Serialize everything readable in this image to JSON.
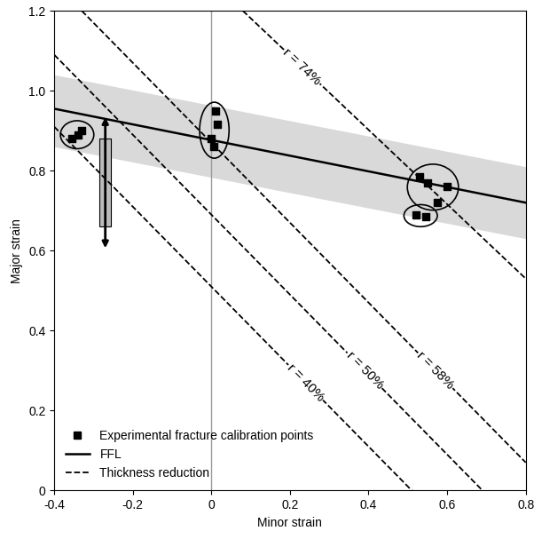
{
  "chart_data": {
    "type": "scatter",
    "x_label": "Minor strain",
    "y_label": "Major strain",
    "xlim": [
      -0.4,
      0.8
    ],
    "ylim": [
      0,
      1.2
    ],
    "xticks": [
      -0.4,
      -0.2,
      0,
      0.2,
      0.4,
      0.6,
      0.8
    ],
    "yticks": [
      0,
      0.2,
      0.4,
      0.6,
      0.8,
      1.0,
      1.2
    ],
    "legend": "lower left",
    "reference_line_x": 0,
    "band": {
      "x": [
        -0.4,
        0.8
      ],
      "lower": [
        0.86,
        0.63
      ],
      "upper": [
        1.04,
        0.81
      ],
      "color": "#d9d9d9"
    },
    "series": [
      {
        "name": "Experimental fracture calibration points",
        "type": "scatter",
        "marker": "square",
        "color": "#000000",
        "groups": [
          {
            "x": [
              -0.355,
              -0.34,
              -0.33
            ],
            "y": [
              0.88,
              0.89,
              0.9
            ]
          },
          {
            "x": [
              0.01,
              0.015,
              0.0,
              0.005
            ],
            "y": [
              0.95,
              0.915,
              0.88,
              0.86
            ]
          },
          {
            "x": [
              0.53,
              0.55,
              0.6,
              0.575
            ],
            "y": [
              0.785,
              0.77,
              0.76,
              0.72
            ]
          },
          {
            "x": [
              0.52,
              0.545
            ],
            "y": [
              0.69,
              0.685
            ]
          }
        ]
      },
      {
        "name": "FFL",
        "type": "line",
        "line_style": "solid",
        "color": "#000000",
        "x": [
          -0.4,
          0.8
        ],
        "y": [
          0.955,
          0.72
        ]
      },
      {
        "name": "Thickness reduction",
        "type": "line",
        "line_style": "dashed",
        "color": "#000000",
        "lines": [
          {
            "label": "r = 40%",
            "x": [
              -0.4,
              0.51
            ],
            "y": [
              0.91,
              0
            ]
          },
          {
            "label": "r = 50%",
            "x": [
              -0.4,
              0.69
            ],
            "y": [
              1.09,
              0
            ]
          },
          {
            "label": "r = 58%",
            "x": [
              -0.33,
              0.8
            ],
            "y": [
              1.2,
              0.07
            ]
          },
          {
            "label": "r = 74%",
            "x": [
              0.08,
              0.8
            ],
            "y": [
              1.2,
              0.53
            ]
          }
        ]
      }
    ]
  }
}
